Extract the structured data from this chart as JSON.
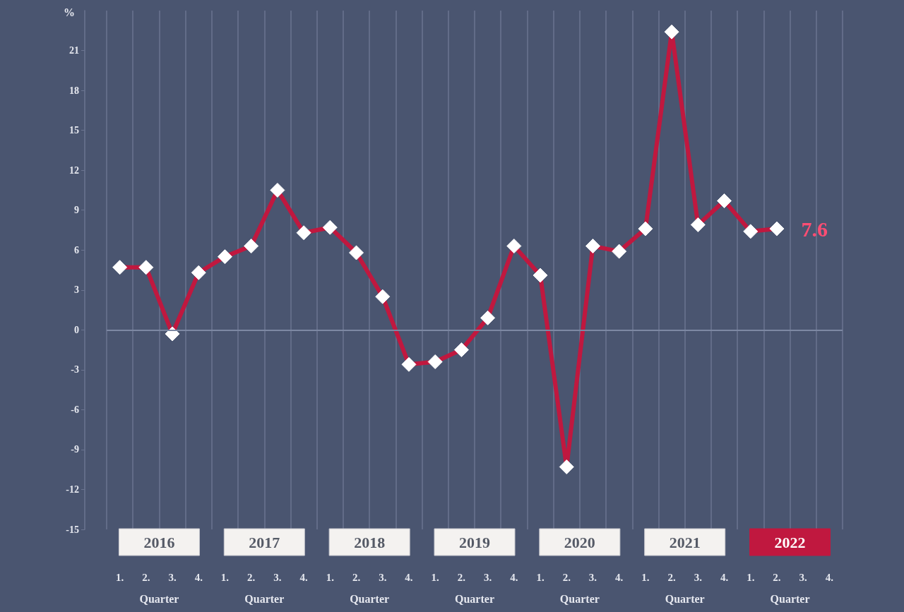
{
  "chart_data": {
    "type": "line",
    "ylabel": "%",
    "categories": [
      "1.",
      "2.",
      "3.",
      "4.",
      "1.",
      "2.",
      "3.",
      "4.",
      "1.",
      "2.",
      "3.",
      "4.",
      "1.",
      "2.",
      "3.",
      "4.",
      "1.",
      "2.",
      "3.",
      "4.",
      "1.",
      "2.",
      "3.",
      "4.",
      "1.",
      "2.",
      "3.",
      "4."
    ],
    "series": [
      {
        "color": "#c0183f",
        "values": [
          4.7,
          4.7,
          -0.3,
          4.3,
          5.5,
          6.3,
          10.5,
          7.3,
          7.7,
          5.8,
          2.5,
          -2.6,
          -2.4,
          -1.5,
          0.9,
          6.3,
          4.1,
          -10.3,
          6.3,
          5.9,
          7.6,
          22.4,
          7.9,
          9.7,
          7.4,
          7.6,
          null,
          null
        ],
        "value_labels": [
          null,
          null,
          null,
          null,
          null,
          null,
          null,
          null,
          null,
          null,
          null,
          null,
          null,
          null,
          null,
          null,
          null,
          null,
          null,
          null,
          null,
          null,
          null,
          null,
          null,
          "7.6",
          null,
          null
        ]
      }
    ],
    "ylim": [
      -15,
      24
    ],
    "yticks": [
      -15,
      -12,
      -9,
      -6,
      -3,
      0,
      3,
      6,
      9,
      12,
      15,
      18,
      21
    ],
    "ref_lines": [
      {
        "axis": "y",
        "value": 0,
        "color": "#7d88a3"
      }
    ],
    "annotations": [
      "2016",
      "2017",
      "2018",
      "2019",
      "2020",
      "2021",
      "2022",
      "Quarter",
      "Quarter",
      "Quarter",
      "Quarter",
      "Quarter",
      "Quarter",
      "Quarter"
    ],
    "grid": "x",
    "marker": "diamond",
    "line_style": "solid"
  }
}
